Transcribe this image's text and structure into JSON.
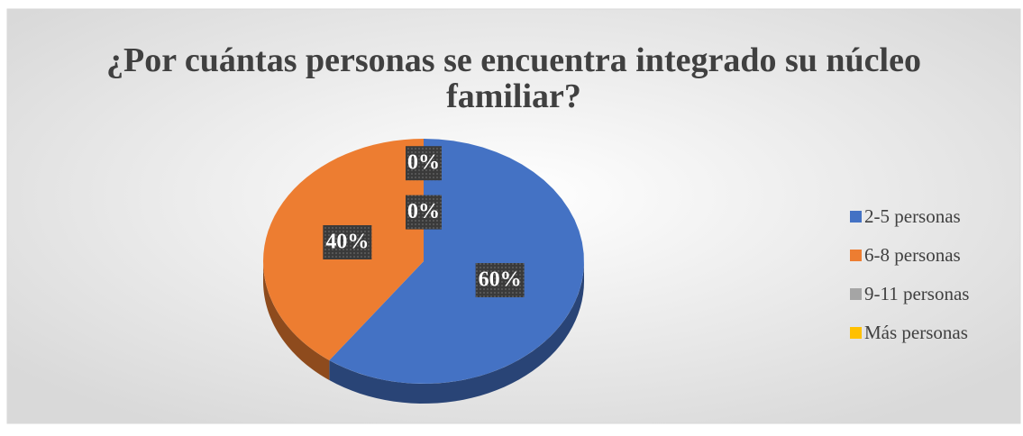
{
  "chart_data": {
    "type": "pie",
    "title": "¿Por cuántas personas se encuentra integrado su núcleo familiar?",
    "categories": [
      "2-5 personas",
      "6-8 personas",
      "9-11 personas",
      "Más personas"
    ],
    "values": [
      60,
      40,
      0,
      0
    ],
    "value_labels": [
      "60%",
      "40%",
      "0%",
      "0%"
    ],
    "colors": [
      "#4472c4",
      "#ed7d31",
      "#a5a5a5",
      "#ffc000"
    ],
    "legend": "right"
  }
}
